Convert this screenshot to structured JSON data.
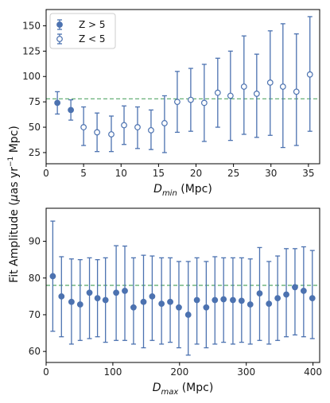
{
  "colors": {
    "series": "#4c72b0",
    "reference_line": "#55a868",
    "axes": "#000000"
  },
  "shared": {
    "ylabel_prefix": "Fit Amplitude (",
    "ylabel_mu": "μ",
    "ylabel_mid": "as yr",
    "ylabel_exp": "−1",
    "ylabel_suffix": " Mpc)"
  },
  "chart_data": [
    {
      "type": "scatter",
      "xlabel_base": "D",
      "xlabel_sub": "min",
      "xlabel_unit": " (Mpc)",
      "xlim": [
        0,
        36.5
      ],
      "ylim": [
        14,
        166
      ],
      "xticks": [
        0,
        5,
        10,
        15,
        20,
        25,
        30,
        35
      ],
      "yticks": [
        25,
        50,
        75,
        100,
        125,
        150
      ],
      "reference_line": 78,
      "legend": {
        "placement": "top-left",
        "entries": [
          "Z > 5",
          "Z < 5"
        ]
      },
      "series": [
        {
          "name": "Z > 5",
          "marker": "filled",
          "x": [
            1.5,
            3.3
          ],
          "y": [
            74,
            67
          ],
          "ylow": [
            63,
            57
          ],
          "yhigh": [
            85,
            77
          ]
        },
        {
          "name": "Z < 5",
          "marker": "open",
          "x": [
            5.0,
            6.8,
            8.7,
            10.4,
            12.2,
            14.0,
            15.8,
            17.5,
            19.3,
            21.1,
            22.9,
            24.6,
            26.4,
            28.1,
            29.9,
            31.6,
            33.4,
            35.2
          ],
          "y": [
            50,
            45,
            43,
            52,
            50,
            47,
            54,
            75,
            77,
            74,
            84,
            81,
            90,
            83,
            94,
            90,
            85,
            102
          ],
          "ylow": [
            32,
            26,
            26,
            33,
            29,
            28,
            25,
            45,
            46,
            36,
            50,
            37,
            43,
            40,
            42,
            30,
            32,
            46
          ],
          "yhigh": [
            70,
            64,
            61,
            71,
            70,
            67,
            81,
            105,
            108,
            112,
            118,
            125,
            140,
            122,
            145,
            152,
            142,
            159
          ]
        }
      ]
    },
    {
      "type": "scatter",
      "xlabel_base": "D",
      "xlabel_sub": "max",
      "xlabel_unit": " (Mpc)",
      "xlim": [
        0,
        410
      ],
      "ylim": [
        57,
        99
      ],
      "xticks": [
        0,
        100,
        200,
        300,
        400
      ],
      "yticks": [
        60,
        70,
        80,
        90
      ],
      "reference_line": 78,
      "series": [
        {
          "marker": "filled",
          "x": [
            10,
            23,
            38,
            51,
            65,
            77,
            89,
            105,
            118,
            131,
            146,
            159,
            173,
            186,
            199,
            213,
            226,
            240,
            253,
            266,
            280,
            293,
            306,
            320,
            334,
            347,
            360,
            373,
            386,
            399
          ],
          "y": [
            80.5,
            75,
            73.5,
            72.8,
            76,
            74.5,
            74,
            76,
            76.5,
            72,
            73.5,
            75,
            73,
            73.5,
            72,
            70,
            74,
            72,
            74,
            74.2,
            74,
            73.8,
            72.8,
            75.8,
            73,
            74.5,
            75.5,
            77.5,
            76.5,
            74.5
          ],
          "ylow": [
            65.5,
            64,
            62,
            63,
            63.5,
            64,
            62.5,
            63,
            63,
            62,
            61,
            63,
            62,
            62.5,
            61,
            59,
            62,
            61,
            62,
            62.5,
            62,
            62.5,
            62,
            63,
            62,
            63,
            64,
            64.5,
            64,
            63.5
          ],
          "yhigh": [
            95.5,
            85.8,
            85.2,
            85,
            85.5,
            85,
            85.5,
            88.8,
            88.7,
            85.5,
            86.2,
            86,
            85.5,
            85.5,
            84.5,
            84.5,
            85.5,
            84.5,
            85.8,
            85.5,
            85.5,
            85.5,
            85.2,
            88.3,
            84.5,
            86,
            88,
            88,
            88.5,
            87.5
          ]
        }
      ]
    }
  ]
}
